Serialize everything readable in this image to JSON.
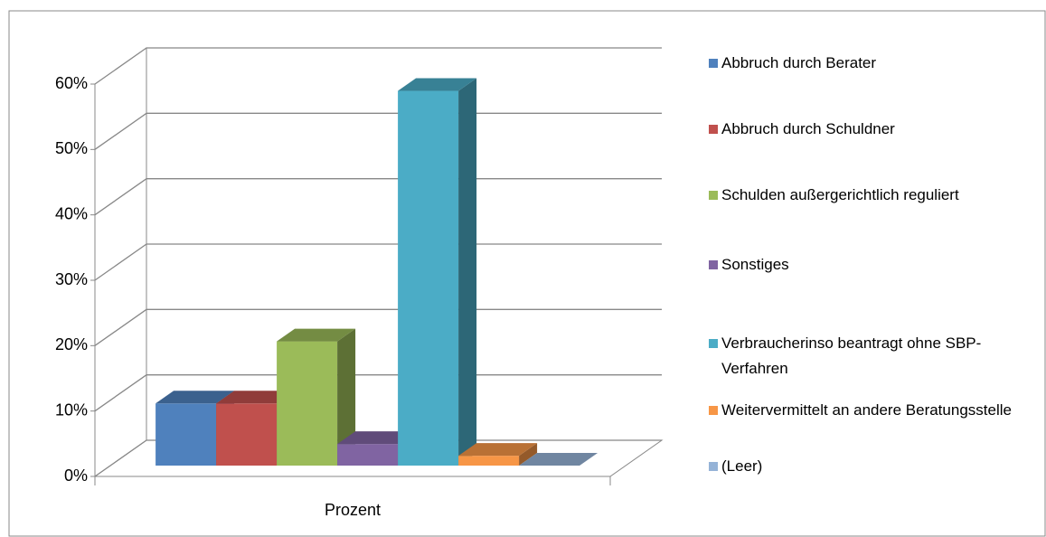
{
  "chart_data": {
    "type": "bar3d",
    "categories": [
      "Prozent"
    ],
    "series": [
      {
        "name": "Abbruch durch Berater",
        "color": "#4f81bd",
        "values": [
          9.5
        ]
      },
      {
        "name": "Abbruch durch Schuldner",
        "color": "#c0504d",
        "values": [
          9.5
        ]
      },
      {
        "name": "Schulden außergerichtlich reguliert",
        "color": "#9bbb59",
        "values": [
          19
        ]
      },
      {
        "name": "Sonstiges",
        "color": "#8064a2",
        "values": [
          3.3
        ]
      },
      {
        "name": "Verbraucherinso beantragt ohne SBP-Verfahren",
        "color": "#4bacc6",
        "values": [
          57.3
        ]
      },
      {
        "name": "Weitervermittelt an andere Beratungsstelle",
        "color": "#f79646",
        "values": [
          1.5
        ]
      },
      {
        "name": "(Leer)",
        "color": "#95b3d7",
        "values": [
          0
        ]
      }
    ],
    "ylim": [
      0,
      60
    ],
    "yticks": [
      {
        "value": 0,
        "label": "0%"
      },
      {
        "value": 10,
        "label": "10%"
      },
      {
        "value": 20,
        "label": "20%"
      },
      {
        "value": 30,
        "label": "30%"
      },
      {
        "value": 40,
        "label": "40%"
      },
      {
        "value": 50,
        "label": "50%"
      },
      {
        "value": 60,
        "label": "60%"
      }
    ],
    "grid": true,
    "legend": "right"
  }
}
